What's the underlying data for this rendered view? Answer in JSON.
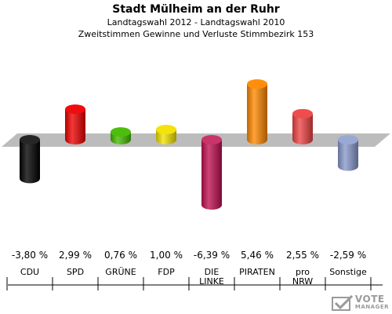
{
  "header": {
    "title": "Stadt Mülheim an der Ruhr",
    "subtitle1": "Landtagswahl 2012 - Landtagswahl 2010",
    "subtitle2": "Zweitstimmen Gewinne und Verluste Stimmbezirk 153"
  },
  "chart_data": {
    "type": "bar",
    "title": "Stadt Mülheim an der Ruhr",
    "categories": [
      [
        "CDU"
      ],
      [
        "SPD"
      ],
      [
        "GRÜNE"
      ],
      [
        "FDP"
      ],
      [
        "DIE",
        "LINKE"
      ],
      [
        "PIRATEN"
      ],
      [
        "pro",
        "NRW"
      ],
      [
        "Sonstige"
      ]
    ],
    "values": [
      -3.8,
      2.99,
      0.76,
      1.0,
      -6.39,
      5.46,
      2.55,
      -2.59
    ],
    "value_labels": [
      "-3,80 %",
      "2,99 %",
      "0,76 %",
      "1,00 %",
      "-6,39 %",
      "5,46 %",
      "2,55 %",
      "-2,59 %"
    ],
    "colors": [
      "#000000",
      "#ee0000",
      "#44bb00",
      "#f2e200",
      "#c01050",
      "#ff8800",
      "#ee4444",
      "#8899cc"
    ],
    "ylim": [
      -7,
      6
    ],
    "grid": false,
    "legend": "none"
  },
  "branding": {
    "line1": "VOTE",
    "line2": "MANAGER"
  }
}
